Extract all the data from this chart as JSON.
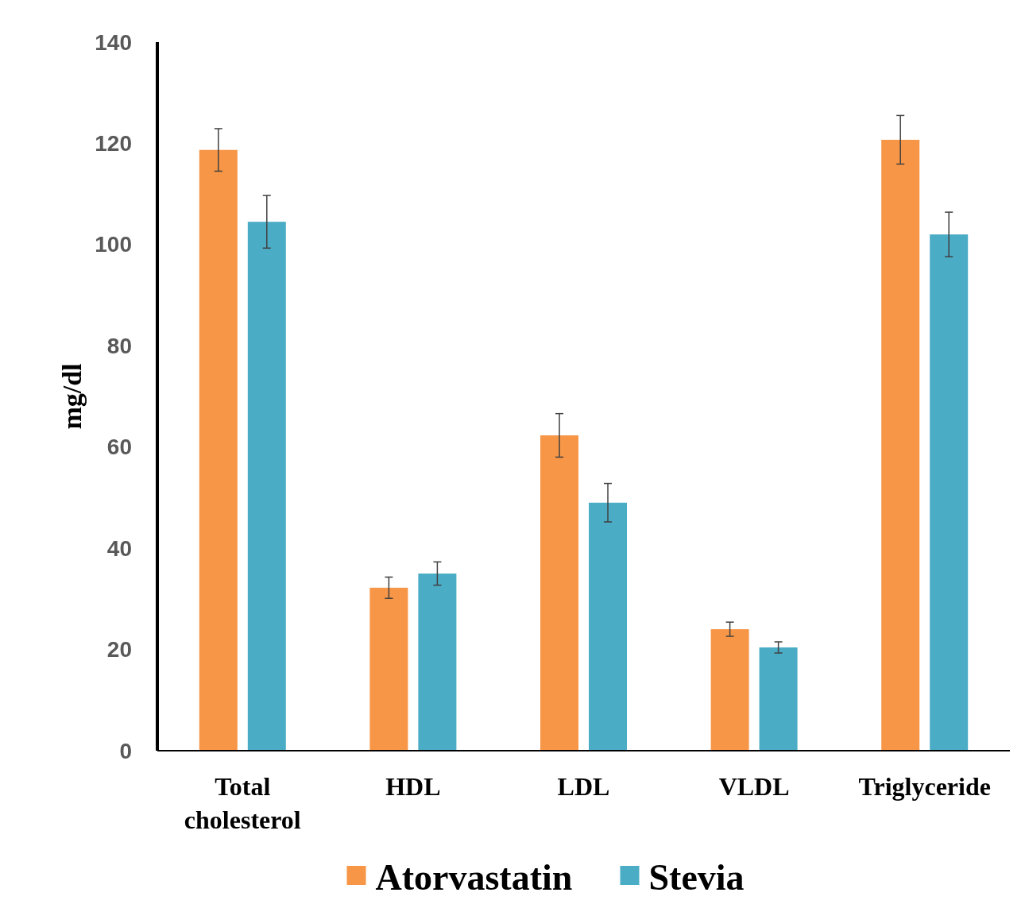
{
  "chart_data": {
    "type": "bar",
    "ylabel": "mg/dl",
    "categories": [
      "Total cholesterol",
      "HDL",
      "LDL",
      "VLDL",
      "Triglyceride"
    ],
    "series": [
      {
        "name": "Atorvastatin",
        "color": "#f79646",
        "values": [
          118.7,
          32.2,
          62.3,
          24.0,
          120.7
        ],
        "errors": [
          4.2,
          2.1,
          4.3,
          1.4,
          4.8
        ]
      },
      {
        "name": "Stevia",
        "color": "#4bacc6",
        "values": [
          104.5,
          35.0,
          49.0,
          20.4,
          102.0
        ],
        "errors": [
          5.2,
          2.3,
          3.8,
          1.1,
          4.4
        ]
      }
    ],
    "ylim": [
      0,
      140
    ],
    "yticks": [
      0,
      20,
      40,
      60,
      80,
      100,
      120,
      140
    ],
    "grid": false,
    "legend": "bottom"
  }
}
